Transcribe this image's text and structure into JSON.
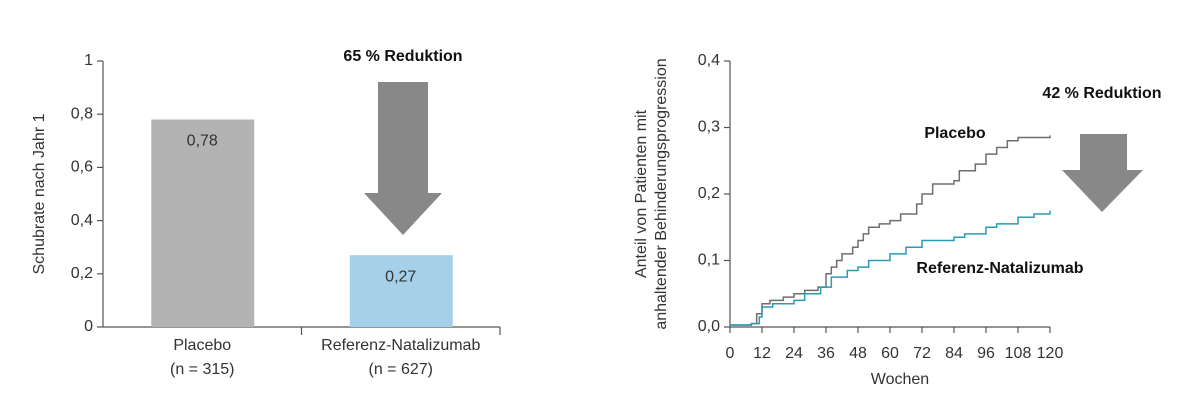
{
  "chart_data": [
    {
      "type": "bar",
      "ylabel": "Schubrate nach Jahr 1",
      "annotation": "65 % Reduktion",
      "categories": [
        "Placebo",
        "Referenz-Natalizumab"
      ],
      "category_sublabels": [
        "(n = 315)",
        "(n = 627)"
      ],
      "values": [
        0.78,
        0.27
      ],
      "value_labels": [
        "0,78",
        "0,27"
      ],
      "colors": [
        "#b3b3b3",
        "#a6cfe9"
      ],
      "ylim": [
        0,
        1
      ],
      "yticks": [
        0,
        {
          "value": 0.2,
          "label": "0,2"
        },
        {
          "value": 0.4,
          "label": "0,4"
        },
        {
          "value": 0.6,
          "label": "0,6"
        },
        {
          "value": 0.8,
          "label": "0,8"
        },
        1
      ]
    },
    {
      "type": "line",
      "drawstyle": "steps-post",
      "xlabel": "Wochen",
      "ylabel": [
        "Anteil von Patienten mit",
        "anhaltender Behinderungsprogression"
      ],
      "annotation": "42 % Reduktion",
      "xlim": [
        0,
        120
      ],
      "xticks": [
        0,
        12,
        24,
        36,
        48,
        60,
        72,
        84,
        96,
        108,
        120
      ],
      "ylim": [
        0,
        0.4
      ],
      "yticks": [
        {
          "value": 0,
          "label": "0,0"
        },
        {
          "value": 0.1,
          "label": "0,1"
        },
        {
          "value": 0.2,
          "label": "0,2"
        },
        {
          "value": 0.3,
          "label": "0,3"
        },
        {
          "value": 0.4,
          "label": "0,4"
        }
      ],
      "series": [
        {
          "name": "Placebo",
          "color": "#6e6e6e",
          "x": [
            0,
            8,
            10,
            12,
            15,
            20,
            24,
            28,
            33,
            36,
            38,
            40,
            42,
            46,
            48,
            50,
            52,
            56,
            60,
            64,
            70,
            72,
            76,
            84,
            86,
            92,
            96,
            100,
            104,
            108,
            120
          ],
          "values": [
            0.003,
            0.005,
            0.02,
            0.035,
            0.04,
            0.045,
            0.05,
            0.055,
            0.06,
            0.08,
            0.09,
            0.1,
            0.11,
            0.12,
            0.13,
            0.14,
            0.15,
            0.155,
            0.16,
            0.17,
            0.185,
            0.2,
            0.215,
            0.22,
            0.235,
            0.245,
            0.26,
            0.27,
            0.28,
            0.285,
            0.288
          ]
        },
        {
          "name": "Referenz-Natalizumab",
          "color": "#2a9bb5",
          "x": [
            0,
            8,
            11,
            12,
            16,
            24,
            28,
            34,
            38,
            44,
            48,
            52,
            60,
            66,
            72,
            84,
            88,
            96,
            100,
            108,
            114,
            120
          ],
          "values": [
            0.003,
            0.005,
            0.015,
            0.03,
            0.035,
            0.04,
            0.05,
            0.06,
            0.075,
            0.085,
            0.09,
            0.1,
            0.11,
            0.12,
            0.13,
            0.135,
            0.14,
            0.15,
            0.155,
            0.165,
            0.17,
            0.175
          ]
        }
      ]
    }
  ]
}
